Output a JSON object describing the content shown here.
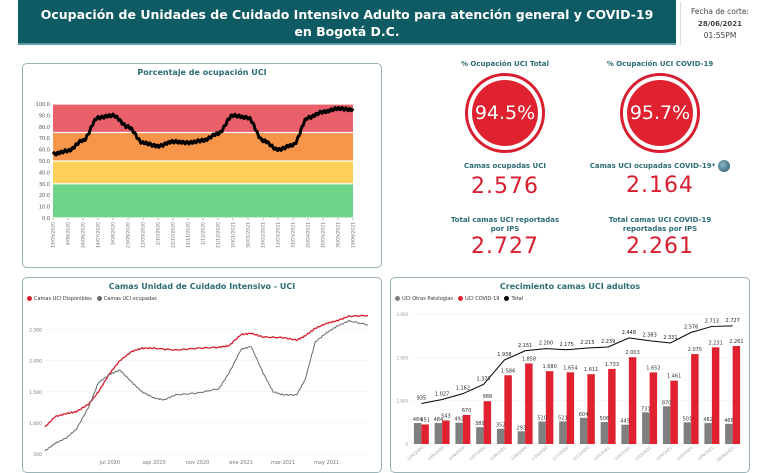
{
  "header": {
    "title_line1": "Ocupación de Unidades de Cuidado Intensivo Adulto para atención general y COVID-19",
    "title_line2": "en Bogotá D.C.",
    "fecha_label": "Fecha de corte:",
    "fecha_date": "28/06/2021",
    "fecha_time": "01:55PM"
  },
  "kpis": {
    "ocupacion_total_label": "% Ocupación UCI Total",
    "ocupacion_total": "94.5%",
    "ocupacion_covid_label": "% Ocupación UCI COVID-19",
    "ocupacion_covid": "95.7%",
    "camas_ocupadas_label": "Camas ocupadas UCI",
    "camas_ocupadas": "2.576",
    "camas_covid_label": "Camas UCI ocupadas COVID-19*",
    "camas_covid": "2.164",
    "total_camas_label": "Total camas UCI reportadas por IPS",
    "total_camas": "2.727",
    "total_covid_label": "Total camas UCI COVID-19 reportadas por IPS",
    "total_covid": "2.261",
    "info_icon": "globe-icon"
  },
  "colors": {
    "teal": "#0f5b63",
    "red": "#e0212f",
    "gray": "#7f7f7f",
    "band_red": "#e9606b",
    "band_orange": "#f7954a",
    "band_yellow": "#fdd05a",
    "band_green": "#6fd48a"
  },
  "chart_data": [
    {
      "type": "line",
      "title": "Porcentaje de ocupación UCI",
      "ylim": [
        0,
        100
      ],
      "yticks": [
        "0.0",
        "10.0",
        "20.0",
        "30.0",
        "40.0",
        "50.0",
        "60.0",
        "70.0",
        "80.0",
        "90.0",
        "100.0"
      ],
      "bands": [
        {
          "from": 0,
          "to": 30,
          "color": "#6fd48a"
        },
        {
          "from": 30,
          "to": 50,
          "color": "#fdd05a"
        },
        {
          "from": 50,
          "to": 75,
          "color": "#f7954a"
        },
        {
          "from": 75,
          "to": 100,
          "color": "#e9606b"
        }
      ],
      "x": [
        "15/05/2020",
        "4/06/2020",
        "24/06/2020",
        "14/07/2020",
        "3/08/2020",
        "23/08/2020",
        "12/09/2020",
        "2/10/2020",
        "22/10/2020",
        "11/11/2020",
        "1/12/2020",
        "21/12/2020",
        "10/01/2021",
        "30/01/2021",
        "19/02/2021",
        "11/03/2021",
        "31/03/2021",
        "20/04/2021",
        "10/05/2021",
        "30/05/2021",
        "19/06/2021"
      ],
      "values": [
        56,
        59,
        68,
        88,
        90,
        80,
        66,
        63,
        67,
        66,
        68,
        74,
        90,
        88,
        68,
        60,
        64,
        88,
        93,
        96,
        95
      ]
    },
    {
      "type": "line",
      "title": "Camas Unidad de Cuidado Intensivo - UCI",
      "ylim": [
        500,
        2750
      ],
      "yticks": [
        "500",
        "1.000",
        "1.500",
        "2.000",
        "2.500"
      ],
      "xticks": [
        "jul 2020",
        "sep 2020",
        "nov 2020",
        "ene 2021",
        "mar 2021",
        "may 2021"
      ],
      "legend": "top-left",
      "series": [
        {
          "name": "Camas UCI Disponibles",
          "color": "#d81e2f",
          "points": [
            [
              "2020-04-01",
              935
            ],
            [
              "2020-04-15",
              1100
            ],
            [
              "2020-05-01",
              1150
            ],
            [
              "2020-05-15",
              1180
            ],
            [
              "2020-06-01",
              1300
            ],
            [
              "2020-06-15",
              1500
            ],
            [
              "2020-07-01",
              1800
            ],
            [
              "2020-07-15",
              2000
            ],
            [
              "2020-08-01",
              2150
            ],
            [
              "2020-08-15",
              2200
            ],
            [
              "2020-09-01",
              2200
            ],
            [
              "2020-10-01",
              2170
            ],
            [
              "2020-11-01",
              2200
            ],
            [
              "2020-12-01",
              2215
            ],
            [
              "2020-12-15",
              2240
            ],
            [
              "2021-01-01",
              2420
            ],
            [
              "2021-01-15",
              2440
            ],
            [
              "2021-02-01",
              2380
            ],
            [
              "2021-03-01",
              2370
            ],
            [
              "2021-03-20",
              2330
            ],
            [
              "2021-04-01",
              2400
            ],
            [
              "2021-04-15",
              2520
            ],
            [
              "2021-05-01",
              2600
            ],
            [
              "2021-05-15",
              2640
            ],
            [
              "2021-06-01",
              2713
            ],
            [
              "2021-06-28",
              2727
            ]
          ]
        },
        {
          "name": "Camas UCI ocupadas",
          "color": "#6b6b6b",
          "points": [
            [
              "2020-04-01",
              550
            ],
            [
              "2020-04-15",
              670
            ],
            [
              "2020-05-01",
              760
            ],
            [
              "2020-05-15",
              900
            ],
            [
              "2020-06-01",
              1250
            ],
            [
              "2020-06-15",
              1650
            ],
            [
              "2020-07-01",
              1780
            ],
            [
              "2020-07-15",
              1850
            ],
            [
              "2020-08-01",
              1650
            ],
            [
              "2020-08-15",
              1500
            ],
            [
              "2020-09-01",
              1400
            ],
            [
              "2020-09-15",
              1370
            ],
            [
              "2020-10-01",
              1450
            ],
            [
              "2020-11-01",
              1480
            ],
            [
              "2020-12-01",
              1550
            ],
            [
              "2020-12-15",
              1800
            ],
            [
              "2021-01-01",
              2180
            ],
            [
              "2021-01-15",
              2230
            ],
            [
              "2021-02-01",
              1800
            ],
            [
              "2021-02-15",
              1500
            ],
            [
              "2021-03-01",
              1450
            ],
            [
              "2021-03-20",
              1450
            ],
            [
              "2021-04-01",
              1700
            ],
            [
              "2021-04-15",
              2300
            ],
            [
              "2021-05-01",
              2450
            ],
            [
              "2021-05-15",
              2550
            ],
            [
              "2021-06-01",
              2640
            ],
            [
              "2021-06-28",
              2576
            ]
          ]
        }
      ]
    },
    {
      "type": "bar",
      "title": "Crecimiento camas UCI adultos",
      "ylim": [
        0,
        3000
      ],
      "yticks": [
        "0",
        "1.000",
        "2.000",
        "3.000"
      ],
      "legend": "top-left",
      "categories": [
        "1/04/2020",
        "1/05/2020",
        "1/06/2020",
        "1/07/2020",
        "1/08/2020",
        "1/09/2020",
        "1/10/2020",
        "1/11/2020",
        "1/12/2020",
        "1/01/2021",
        "1/02/2021",
        "1/03/2021",
        "1/04/2021",
        "1/05/2021",
        "1/06/2021",
        "28/06/2021"
      ],
      "series": [
        {
          "name": "UCI Otras Patologías",
          "color": "#7f7f7f",
          "values": [
            484,
            484,
            492,
            389,
            352,
            293,
            520,
            521,
            604,
            506,
            445,
            731,
            870,
            501,
            482,
            466
          ]
        },
        {
          "name": "UCI COVID-19",
          "color": "#e0212f",
          "values": [
            451,
            543,
            670,
            988,
            1586,
            1858,
            1680,
            1654,
            1611,
            1733,
            2003,
            1652,
            1461,
            2075,
            2231,
            2261
          ]
        },
        {
          "name": "Total",
          "color": "#000000",
          "values": [
            935,
            1027,
            1162,
            1377,
            1938,
            2151,
            2200,
            2175,
            2215,
            2239,
            2448,
            2383,
            2331,
            2576,
            2713,
            2727
          ]
        }
      ]
    }
  ]
}
